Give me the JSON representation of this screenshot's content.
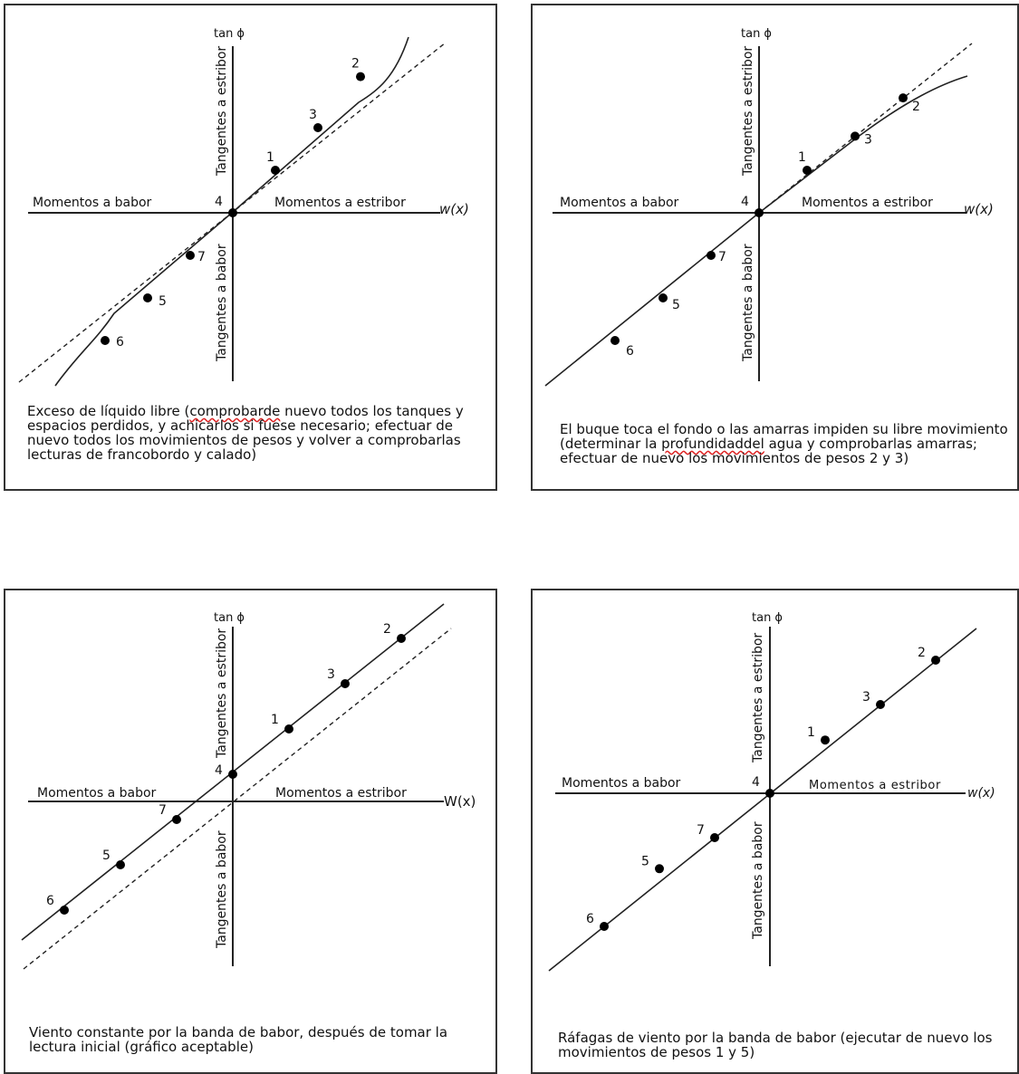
{
  "common": {
    "y_axis_label": "tan ϕ",
    "x_axis_label": "w(x)",
    "x_axis_label_alt": "W(x)",
    "left_moment": "Momentos a babor",
    "right_moment": "Momentos a estribor",
    "upper_tangent": "Tangentes a estribor",
    "lower_tangent": "Tangentes a babor"
  },
  "panels": [
    {
      "id": "p1",
      "caption_parts": [
        {
          "t": "Exceso de líquido libre ("
        },
        {
          "t": "comprobarde",
          "err": true
        },
        {
          "t": " nuevo todos los tanques y espacios perdidos, y achicarlos si fuese necesario; efectuar de nuevo todos los movimientos de pesos y volver a comprobarlas lecturas de francobordo y calado)"
        }
      ],
      "points": [
        {
          "label": "1",
          "x": 1,
          "y": 1
        },
        {
          "label": "2",
          "x": 3,
          "y": 3.2
        },
        {
          "label": "3",
          "x": 2,
          "y": 2
        },
        {
          "label": "4",
          "x": 0,
          "y": 0
        },
        {
          "label": "5",
          "x": -2,
          "y": -2
        },
        {
          "label": "6",
          "x": -3,
          "y": -3
        },
        {
          "label": "7",
          "x": -1,
          "y": -1
        }
      ]
    },
    {
      "id": "p2",
      "caption_parts": [
        {
          "t": "El buque toca el fondo o las amarras impiden su libre movimiento (determinar la "
        },
        {
          "t": "profundidaddel",
          "err": true
        },
        {
          "t": " agua y comprobarlas amarras; efectuar de nuevo los movimientos de pesos 2 y 3)"
        }
      ],
      "points": [
        {
          "label": "1",
          "x": 1,
          "y": 1
        },
        {
          "label": "2",
          "x": 3,
          "y": 2.7
        },
        {
          "label": "3",
          "x": 2,
          "y": 1.8
        },
        {
          "label": "4",
          "x": 0,
          "y": 0
        },
        {
          "label": "5",
          "x": -2,
          "y": -2
        },
        {
          "label": "6",
          "x": -3,
          "y": -3
        },
        {
          "label": "7",
          "x": -1,
          "y": -1
        }
      ]
    },
    {
      "id": "p3",
      "caption_parts": [
        {
          "t": "Viento constante por la banda de babor, después de tomar la lectura inicial (gráfico aceptable)"
        }
      ],
      "points": [
        {
          "label": "1",
          "x": 1,
          "y": 1.6
        },
        {
          "label": "2",
          "x": 3,
          "y": 3.6
        },
        {
          "label": "3",
          "x": 2,
          "y": 2.6
        },
        {
          "label": "4",
          "x": 0,
          "y": 0.6
        },
        {
          "label": "5",
          "x": -2,
          "y": -1.4
        },
        {
          "label": "6",
          "x": -3,
          "y": -2.4
        },
        {
          "label": "7",
          "x": -1,
          "y": -0.4
        }
      ]
    },
    {
      "id": "p4",
      "caption_parts": [
        {
          "t": "Ráfagas de viento por la banda de babor (ejecutar de nuevo los movimientos de pesos 1 y 5)"
        }
      ],
      "points": [
        {
          "label": "1",
          "x": 1,
          "y": 1.2
        },
        {
          "label": "2",
          "x": 3,
          "y": 3
        },
        {
          "label": "3",
          "x": 2,
          "y": 2
        },
        {
          "label": "4",
          "x": 0,
          "y": 0
        },
        {
          "label": "5",
          "x": -2,
          "y": -1.7
        },
        {
          "label": "6",
          "x": -3,
          "y": -3
        },
        {
          "label": "7",
          "x": -1,
          "y": -1
        }
      ]
    }
  ]
}
